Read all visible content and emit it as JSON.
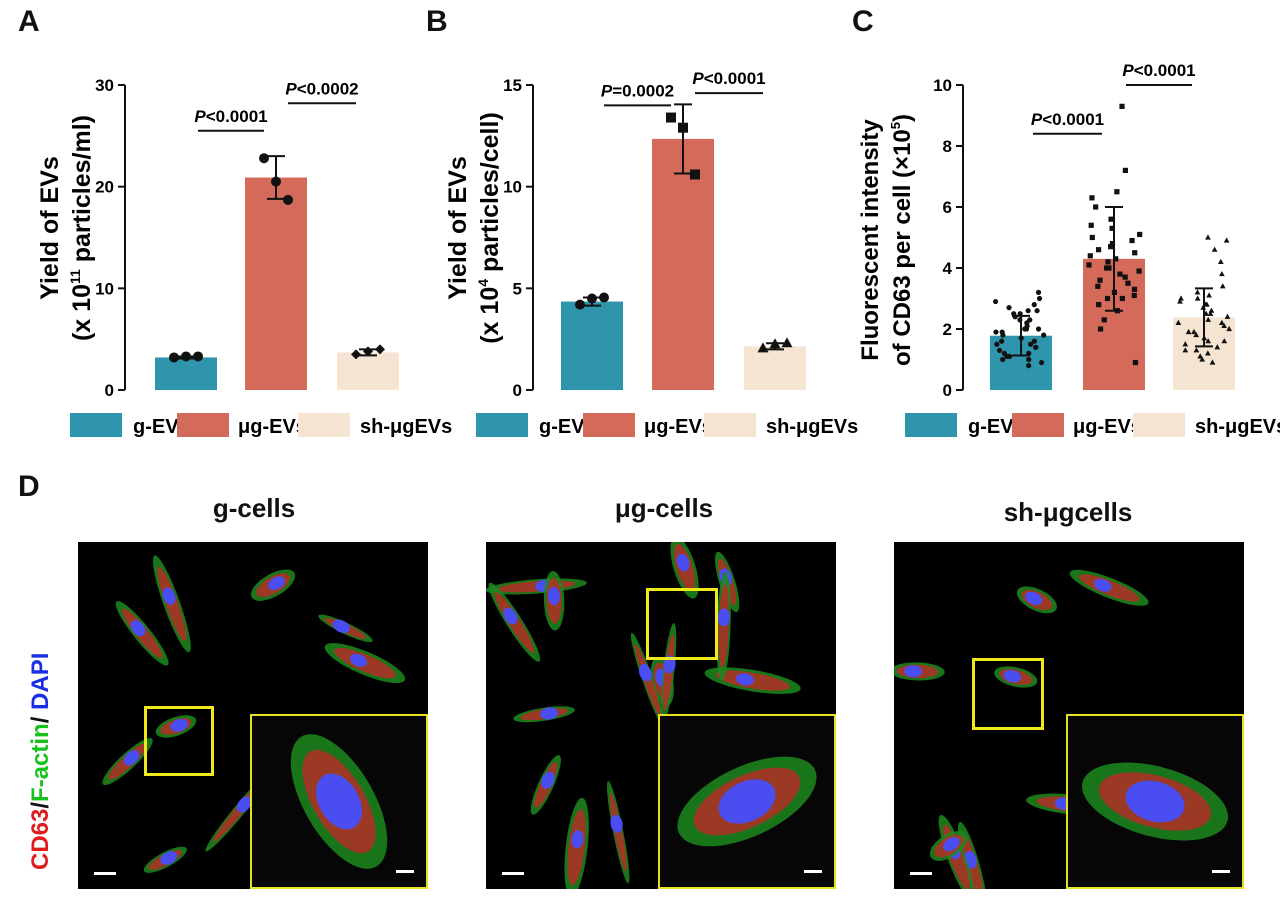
{
  "panels": {
    "a": "A",
    "b": "B",
    "c": "C",
    "d": "D"
  },
  "colors": {
    "g": "#2e95ad",
    "mu": "#d46a5a",
    "sh": "#f5e4d2"
  },
  "legend": [
    "g-EVs",
    "μg-EVs",
    "sh-μgEVs"
  ],
  "chart_data": [
    {
      "type": "bar",
      "categories": [
        "g-EVs",
        "μg-EVs",
        "sh-μgEVs"
      ],
      "values": [
        3.2,
        20.9,
        3.7
      ],
      "error": [
        0.1,
        2.1,
        0.3
      ],
      "points": [
        [
          3.2,
          3.3,
          3.3
        ],
        [
          22.8,
          20.5,
          18.7
        ],
        [
          3.5,
          3.8,
          4.0
        ]
      ],
      "ylabel_line1": "Yield of EVs",
      "ylabel_line2_pre": "(x 10",
      "ylabel_sup": "11",
      "ylabel_line2_post": " particles/ml)",
      "ylim": [
        0,
        30
      ],
      "yticks": [
        0,
        10,
        20,
        30
      ],
      "annotations": [
        {
          "from": 0,
          "to": 1,
          "y": 25.5,
          "italic": "P",
          "text": "<0.0001"
        },
        {
          "from": 1,
          "to": 2,
          "y": 28.2,
          "italic": "P",
          "text": "<0.0002"
        }
      ]
    },
    {
      "type": "bar",
      "categories": [
        "g-EVs",
        "μg-EVs",
        "sh-μgEVs"
      ],
      "values": [
        4.35,
        12.35,
        2.15
      ],
      "error": [
        0.2,
        1.7,
        0.15
      ],
      "points": [
        [
          4.2,
          4.5,
          4.55
        ],
        [
          13.4,
          12.9,
          10.6
        ],
        [
          2.05,
          2.25,
          2.3
        ]
      ],
      "ylabel_line1": "Yield of EVs",
      "ylabel_line2_pre": "(x 10",
      "ylabel_sup": "4",
      "ylabel_line2_post": " particles/cell)",
      "ylim": [
        0,
        15
      ],
      "yticks": [
        0,
        5,
        10,
        15
      ],
      "annotations": [
        {
          "from": 0,
          "to": 1,
          "y": 14.0,
          "italic": "P",
          "text": "=0.0002"
        },
        {
          "from": 1,
          "to": 2,
          "y": 14.6,
          "italic": "P",
          "text": "<0.0001"
        }
      ]
    },
    {
      "type": "bar",
      "categories": [
        "g-EVs",
        "μg-EVs",
        "sh-μgEVs"
      ],
      "values": [
        1.78,
        4.3,
        2.38
      ],
      "error": [
        0.65,
        1.7,
        0.95
      ],
      "ylabel_line1": "Fluorescent intensity",
      "ylabel_line2_pre": "of CD63 per cell (×10",
      "ylabel_sup": "5",
      "ylabel_line2_post": ")",
      "ylim": [
        0,
        10
      ],
      "yticks": [
        0,
        2,
        4,
        6,
        8,
        10
      ],
      "annotations": [
        {
          "from": 0,
          "to": 1,
          "y": 8.4,
          "italic": "P",
          "text": "<0.0001"
        },
        {
          "from": 1,
          "to": 2,
          "y": 10.0,
          "italic": "P",
          "text": "<0.0001"
        }
      ],
      "points": [
        [
          1.0,
          1.2,
          1.5,
          1.8,
          2.0,
          2.3,
          2.5,
          2.7,
          3.0,
          3.2,
          0.9,
          1.1,
          1.4,
          1.6,
          1.9,
          2.1,
          2.4,
          2.6,
          2.8,
          1.3,
          1.7,
          2.2,
          1.0,
          1.5,
          2.0,
          2.5,
          1.2,
          1.8,
          2.9,
          1.6,
          2.3,
          0.8,
          1.4,
          2.0,
          2.6,
          1.9,
          1.1
        ],
        [
          0.9,
          2.0,
          2.8,
          3.0,
          3.2,
          3.5,
          3.8,
          4.0,
          4.2,
          4.4,
          4.6,
          4.8,
          5.0,
          5.3,
          5.6,
          6.0,
          6.5,
          7.2,
          9.3,
          3.3,
          3.7,
          4.1,
          4.5,
          4.9,
          3.0,
          3.9,
          4.3,
          5.1,
          2.6,
          3.4,
          4.7,
          5.4,
          3.6,
          4.0,
          3.1,
          6.3,
          2.3
        ],
        [
          1.0,
          1.3,
          1.6,
          1.9,
          2.2,
          2.5,
          2.8,
          3.1,
          3.4,
          3.8,
          4.2,
          4.6,
          5.0,
          4.9,
          1.2,
          1.5,
          1.8,
          2.1,
          2.4,
          2.7,
          3.0,
          1.1,
          1.4,
          1.7,
          2.0,
          2.3,
          2.6,
          2.9,
          3.2,
          1.6,
          2.2,
          2.8,
          0.9,
          1.9,
          2.5,
          3.0,
          1.3
        ]
      ]
    }
  ],
  "images": {
    "side_label": {
      "cd63": "CD63",
      "slash1": "/",
      "factin": "F-actin",
      "slash2": "/",
      "dapi": " DAPI"
    },
    "titles": [
      "g-cells",
      "μg-cells",
      "sh-μgcells"
    ]
  }
}
